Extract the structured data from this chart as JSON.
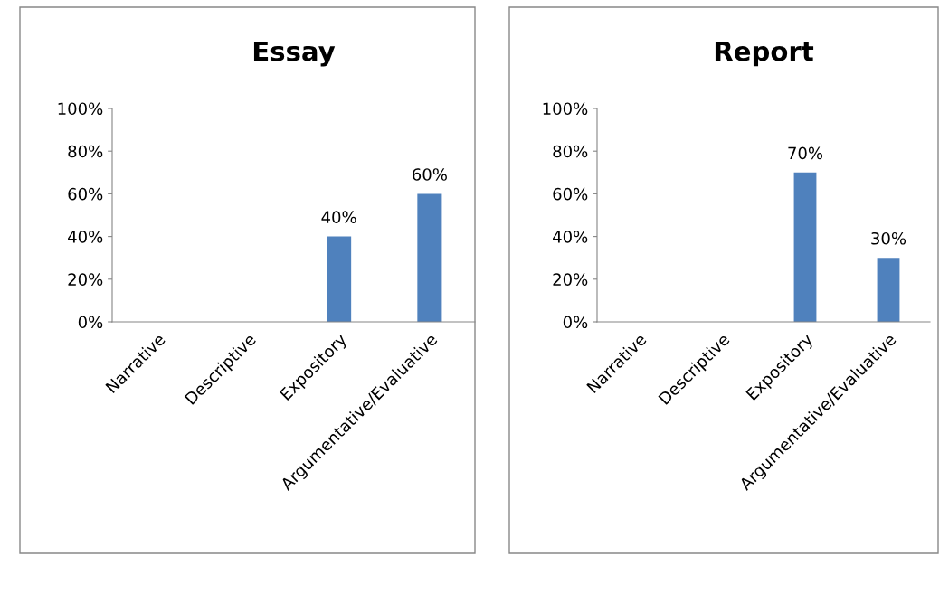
{
  "chart_data": [
    {
      "type": "bar",
      "title": "Essay",
      "categories": [
        "Narrative",
        "Descriptive",
        "Expository",
        "Argumentative/Evaluative"
      ],
      "values": [
        0,
        0,
        40,
        60
      ],
      "color": "#4f81bd",
      "value_labels": [
        null,
        null,
        "40%",
        "60%"
      ],
      "ylim": [
        0,
        100
      ],
      "yticks": [
        {
          "value": 0,
          "label": "0%"
        },
        {
          "value": 20,
          "label": "20%"
        },
        {
          "value": 40,
          "label": "40%"
        },
        {
          "value": 60,
          "label": "60%"
        },
        {
          "value": 80,
          "label": "80%"
        },
        {
          "value": 100,
          "label": "100%"
        }
      ],
      "grid": false,
      "legend": false
    },
    {
      "type": "bar",
      "title": "Report",
      "categories": [
        "Narrative",
        "Descriptive",
        "Expository",
        "Argumentative/Evaluative"
      ],
      "values": [
        0,
        0,
        70,
        30
      ],
      "color": "#4f81bd",
      "value_labels": [
        null,
        null,
        "70%",
        "30%"
      ],
      "ylim": [
        0,
        100
      ],
      "yticks": [
        {
          "value": 0,
          "label": "0%"
        },
        {
          "value": 20,
          "label": "20%"
        },
        {
          "value": 40,
          "label": "40%"
        },
        {
          "value": 60,
          "label": "60%"
        },
        {
          "value": 80,
          "label": "80%"
        },
        {
          "value": 100,
          "label": "100%"
        }
      ],
      "grid": false,
      "legend": false
    }
  ]
}
